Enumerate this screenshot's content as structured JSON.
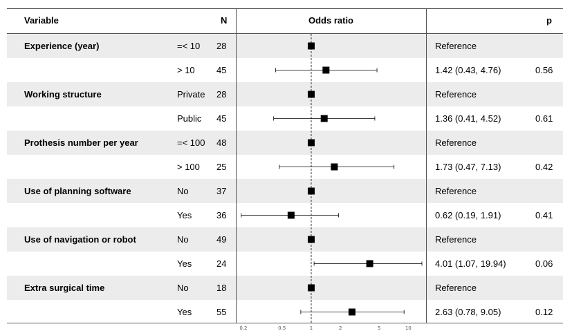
{
  "headers": {
    "variable": "Variable",
    "n": "N",
    "odds_ratio": "Odds ratio",
    "p": "p"
  },
  "rows": [
    {
      "variable": "Experience (year)",
      "level": "=< 10",
      "n": "28",
      "estimate": "Reference",
      "p": ""
    },
    {
      "variable": "",
      "level": "> 10",
      "n": "45",
      "estimate": "1.42 (0.43, 4.76)",
      "p": "0.56"
    },
    {
      "variable": "Working structure",
      "level": "Private",
      "n": "28",
      "estimate": "Reference",
      "p": ""
    },
    {
      "variable": "",
      "level": "Public",
      "n": "45",
      "estimate": "1.36 (0.41, 4.52)",
      "p": "0.61"
    },
    {
      "variable": "Prothesis number per year",
      "level": "=< 100",
      "n": "48",
      "estimate": "Reference",
      "p": ""
    },
    {
      "variable": "",
      "level": "> 100",
      "n": "25",
      "estimate": "1.73 (0.47, 7.13)",
      "p": "0.42"
    },
    {
      "variable": "Use of planning software",
      "level": "No",
      "n": "37",
      "estimate": "Reference",
      "p": ""
    },
    {
      "variable": "",
      "level": "Yes",
      "n": "36",
      "estimate": "0.62 (0.19, 1.91)",
      "p": "0.41"
    },
    {
      "variable": "Use of navigation or robot",
      "level": "No",
      "n": "49",
      "estimate": "Reference",
      "p": ""
    },
    {
      "variable": "",
      "level": "Yes",
      "n": "24",
      "estimate": "4.01 (1.07, 19.94)",
      "p": "0.06"
    },
    {
      "variable": "Extra surgical time",
      "level": "No",
      "n": "18",
      "estimate": "Reference",
      "p": ""
    },
    {
      "variable": "",
      "level": "Yes",
      "n": "55",
      "estimate": "2.63 (0.78, 9.05)",
      "p": "0.12"
    }
  ],
  "chart_data": {
    "type": "forest",
    "scale": "log",
    "reference_line": 1,
    "xlim": [
      0.17,
      15
    ],
    "x_ticks": [
      0.2,
      0.5,
      1,
      2,
      5,
      10
    ],
    "x_tick_labels": [
      "0.2",
      "0.5",
      "1",
      "2",
      "5",
      "10"
    ],
    "points": [
      {
        "or": 1,
        "lower": null,
        "upper": null
      },
      {
        "or": 1.42,
        "lower": 0.43,
        "upper": 4.76
      },
      {
        "or": 1,
        "lower": null,
        "upper": null
      },
      {
        "or": 1.36,
        "lower": 0.41,
        "upper": 4.52
      },
      {
        "or": 1,
        "lower": null,
        "upper": null
      },
      {
        "or": 1.73,
        "lower": 0.47,
        "upper": 7.13
      },
      {
        "or": 1,
        "lower": null,
        "upper": null
      },
      {
        "or": 0.62,
        "lower": 0.19,
        "upper": 1.91
      },
      {
        "or": 1,
        "lower": null,
        "upper": null
      },
      {
        "or": 4.01,
        "lower": 1.07,
        "upper": 19.94
      },
      {
        "or": 1,
        "lower": null,
        "upper": null
      },
      {
        "or": 2.63,
        "lower": 0.78,
        "upper": 9.05
      }
    ]
  }
}
